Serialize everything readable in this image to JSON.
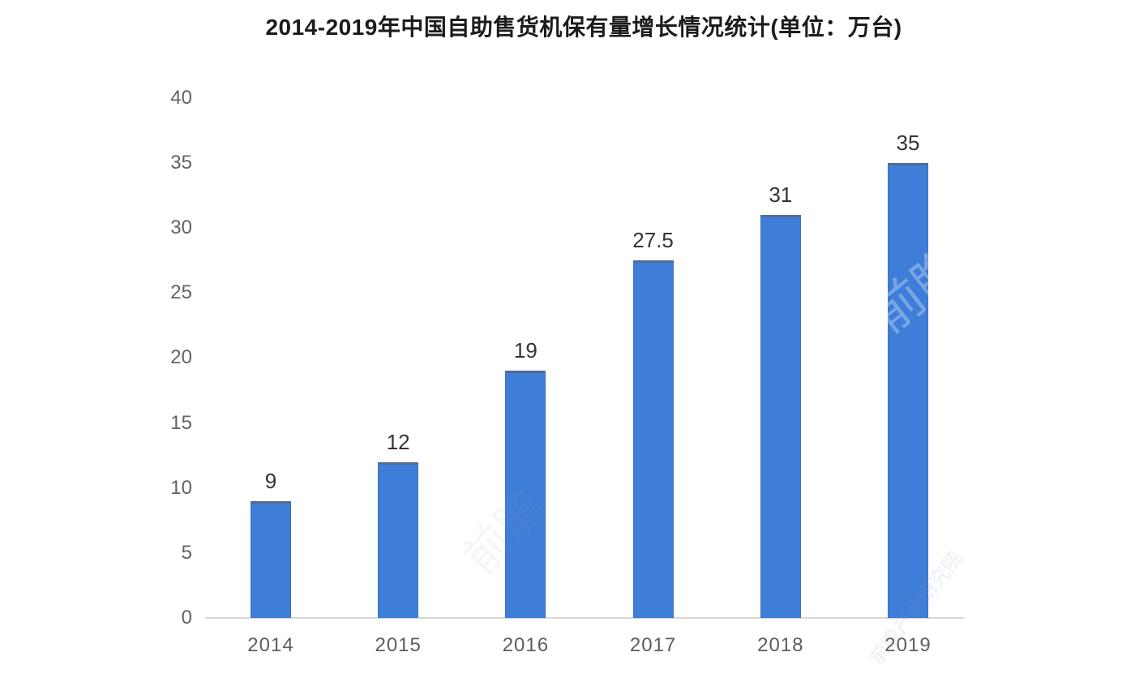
{
  "chart_data": {
    "type": "bar",
    "title": "2014-2019年中国自助售货机保有量增长情况统计(单位：万台)",
    "unit": "万台",
    "categories": [
      "2014",
      "2015",
      "2016",
      "2017",
      "2018",
      "2019"
    ],
    "values": [
      9,
      12,
      19,
      27.5,
      31,
      35
    ],
    "value_labels": [
      "9",
      "12",
      "19",
      "27.5",
      "31",
      "35"
    ],
    "xlabel": "",
    "ylabel": "",
    "ylim": [
      0,
      40
    ],
    "y_ticks": [
      0,
      5,
      10,
      15,
      20,
      25,
      30,
      35,
      40
    ],
    "grid": false,
    "legend_position": "none",
    "bar_color": "#3e7ed9",
    "bar_top_edge_color": "#546a92",
    "axis_line_color": "#d8d8d8",
    "tick_label_color": "#636363",
    "value_label_color": "#333333",
    "title_color": "#1c1c1c"
  },
  "watermarks": {
    "logo_text": "前瞻",
    "site_text": "前瞻产业研究院",
    "center_text": "前瞻"
  }
}
